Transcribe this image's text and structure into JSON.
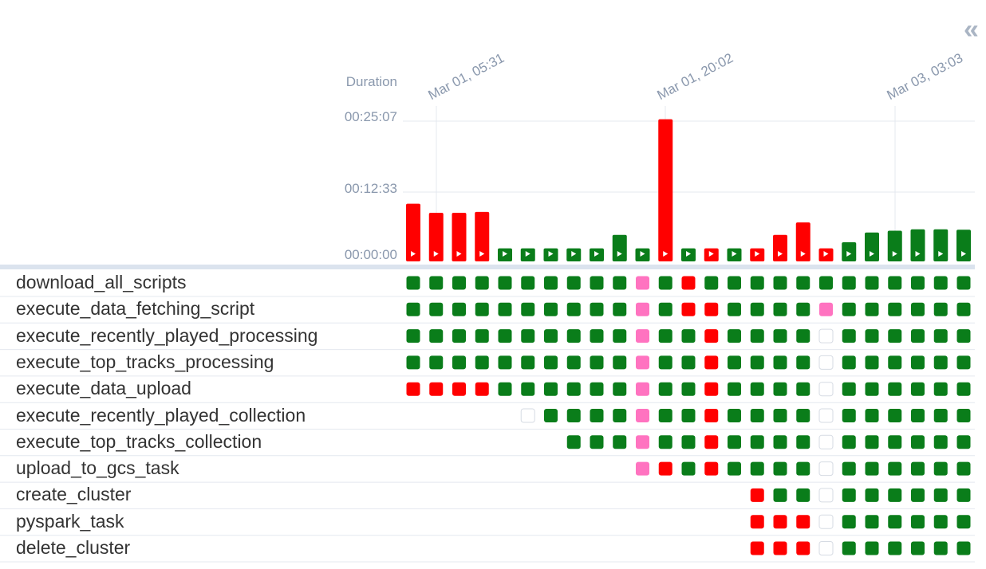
{
  "panel": {
    "collapse_icon": "double-chevron-left-icon",
    "collapse_glyph": "«"
  },
  "duration_chart": {
    "y_title": "Duration",
    "y_ticks": [
      "00:25:07",
      "00:12:33",
      "00:00:00"
    ],
    "date_labels": [
      "Mar 01, 05:31",
      "Mar 01, 20:02",
      "Mar 03, 03:03"
    ]
  },
  "colors": {
    "success": "#0a7d1a",
    "failed": "#ff0000",
    "upstream_failed": "#ff73c0",
    "no_status": "#ffffff",
    "grid": "#e4e8ef",
    "separator": "#dbe3ee"
  },
  "chart_data": {
    "type": "bar",
    "x_unit": "dag run index",
    "y_unit": "seconds",
    "ylim": [
      0,
      1507
    ],
    "values": [
      620,
      522,
      522,
      532,
      140,
      140,
      140,
      140,
      140,
      285,
      140,
      1527,
      140,
      140,
      140,
      140,
      285,
      418,
      140,
      205,
      310,
      330,
      345,
      345,
      340
    ],
    "states": [
      "failed",
      "failed",
      "failed",
      "failed",
      "success",
      "success",
      "success",
      "success",
      "success",
      "success",
      "success",
      "failed",
      "success",
      "failed",
      "success",
      "failed",
      "failed",
      "failed",
      "failed",
      "success",
      "success",
      "success",
      "success",
      "success",
      "success"
    ]
  },
  "tasks": [
    {
      "name": "download_all_scripts",
      "states": [
        "s",
        "s",
        "s",
        "s",
        "s",
        "s",
        "s",
        "s",
        "s",
        "s",
        "u",
        "s",
        "f",
        "s",
        "s",
        "s",
        "s",
        "s",
        "s",
        "s",
        "s",
        "s",
        "s",
        "s",
        "s"
      ]
    },
    {
      "name": "execute_data_fetching_script",
      "states": [
        "s",
        "s",
        "s",
        "s",
        "s",
        "s",
        "s",
        "s",
        "s",
        "s",
        "u",
        "s",
        "f",
        "f",
        "s",
        "s",
        "s",
        "s",
        "u",
        "s",
        "s",
        "s",
        "s",
        "s",
        "s"
      ]
    },
    {
      "name": "execute_recently_played_processing",
      "states": [
        "s",
        "s",
        "s",
        "s",
        "s",
        "s",
        "s",
        "s",
        "s",
        "s",
        "u",
        "s",
        "s",
        "f",
        "s",
        "s",
        "s",
        "s",
        "n",
        "s",
        "s",
        "s",
        "s",
        "s",
        "s"
      ]
    },
    {
      "name": "execute_top_tracks_processing",
      "states": [
        "s",
        "s",
        "s",
        "s",
        "s",
        "s",
        "s",
        "s",
        "s",
        "s",
        "u",
        "s",
        "s",
        "f",
        "s",
        "s",
        "s",
        "s",
        "n",
        "s",
        "s",
        "s",
        "s",
        "s",
        "s"
      ]
    },
    {
      "name": "execute_data_upload",
      "states": [
        "f",
        "f",
        "f",
        "f",
        "s",
        "s",
        "s",
        "s",
        "s",
        "s",
        "u",
        "s",
        "s",
        "f",
        "s",
        "s",
        "s",
        "s",
        "n",
        "s",
        "s",
        "s",
        "s",
        "s",
        "s"
      ]
    },
    {
      "name": "execute_recently_played_collection",
      "states": [
        "",
        "",
        "",
        "",
        "",
        "n",
        "s",
        "s",
        "s",
        "s",
        "u",
        "s",
        "s",
        "f",
        "s",
        "s",
        "s",
        "s",
        "n",
        "s",
        "s",
        "s",
        "s",
        "s",
        "s"
      ]
    },
    {
      "name": "execute_top_tracks_collection",
      "states": [
        "",
        "",
        "",
        "",
        "",
        "",
        "",
        "s",
        "s",
        "s",
        "u",
        "s",
        "s",
        "f",
        "s",
        "s",
        "s",
        "s",
        "n",
        "s",
        "s",
        "s",
        "s",
        "s",
        "s"
      ]
    },
    {
      "name": "upload_to_gcs_task",
      "states": [
        "",
        "",
        "",
        "",
        "",
        "",
        "",
        "",
        "",
        "",
        "u",
        "f",
        "s",
        "f",
        "s",
        "s",
        "s",
        "s",
        "n",
        "s",
        "s",
        "s",
        "s",
        "s",
        "s"
      ]
    },
    {
      "name": "create_cluster",
      "states": [
        "",
        "",
        "",
        "",
        "",
        "",
        "",
        "",
        "",
        "",
        "",
        "",
        "",
        "",
        "",
        "f",
        "s",
        "s",
        "n",
        "s",
        "s",
        "s",
        "s",
        "s",
        "s"
      ]
    },
    {
      "name": "pyspark_task",
      "states": [
        "",
        "",
        "",
        "",
        "",
        "",
        "",
        "",
        "",
        "",
        "",
        "",
        "",
        "",
        "",
        "f",
        "f",
        "f",
        "n",
        "s",
        "s",
        "s",
        "s",
        "s",
        "s"
      ]
    },
    {
      "name": "delete_cluster",
      "states": [
        "",
        "",
        "",
        "",
        "",
        "",
        "",
        "",
        "",
        "",
        "",
        "",
        "",
        "",
        "",
        "f",
        "f",
        "f",
        "n",
        "s",
        "s",
        "s",
        "s",
        "s",
        "s"
      ]
    }
  ]
}
